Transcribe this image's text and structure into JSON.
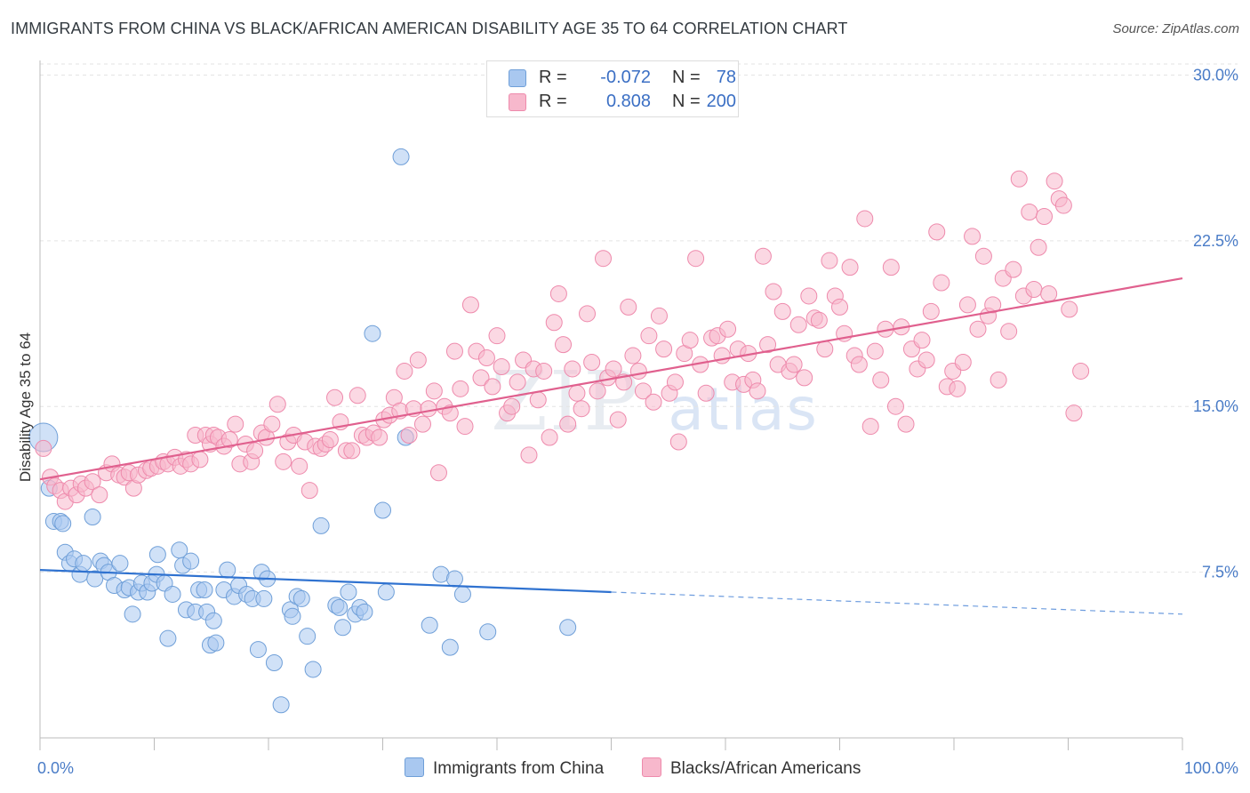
{
  "header": {
    "title": "IMMIGRANTS FROM CHINA VS BLACK/AFRICAN AMERICAN DISABILITY AGE 35 TO 64 CORRELATION CHART",
    "source": "Source: ZipAtlas.com"
  },
  "watermark": {
    "zip": "ZIP",
    "atlas": "atlas"
  },
  "legend_box": {
    "rows": [
      {
        "r_label": "R =",
        "r_value": "-0.072",
        "n_label": "N =",
        "n_value": "78",
        "color": "#a9c8f0"
      },
      {
        "r_label": "R =",
        "r_value": "0.808",
        "n_label": "N =",
        "n_value": "200",
        "color": "#f7b8cc"
      }
    ]
  },
  "bottom_legend": {
    "items": [
      {
        "label": "Immigrants from China",
        "color": "#a9c8f0"
      },
      {
        "label": "Blacks/African Americans",
        "color": "#f7b8cc"
      }
    ]
  },
  "chart_data": {
    "type": "scatter",
    "ylabel": "Disability Age 35 to 64",
    "xlim": [
      0,
      100
    ],
    "ylim": [
      0,
      30.5
    ],
    "y_ticks": [
      {
        "value": 7.5,
        "label": "7.5%"
      },
      {
        "value": 15.0,
        "label": "15.0%"
      },
      {
        "value": 22.5,
        "label": "22.5%"
      },
      {
        "value": 30.0,
        "label": "30.0%"
      }
    ],
    "x_tick_labels": [
      {
        "value": 0,
        "label": "0.0%"
      },
      {
        "value": 100,
        "label": "100.0%"
      }
    ],
    "grid": true,
    "series": [
      {
        "name": "Immigrants from China",
        "color": "#a9c8f0",
        "stroke": "#6f9fd8",
        "trend": {
          "x0": 0,
          "y0": 7.6,
          "x1": 50,
          "y1": 6.6,
          "x_dash_end": 100,
          "y_dash_end": 5.6,
          "color": "#2f72d0"
        },
        "points": [
          [
            0.3,
            13.6
          ],
          [
            0.8,
            11.3
          ],
          [
            1.2,
            9.8
          ],
          [
            1.8,
            9.8
          ],
          [
            2.0,
            9.7
          ],
          [
            2.2,
            8.4
          ],
          [
            2.6,
            7.9
          ],
          [
            3.0,
            8.1
          ],
          [
            3.5,
            7.4
          ],
          [
            3.8,
            7.9
          ],
          [
            4.6,
            10.0
          ],
          [
            4.8,
            7.2
          ],
          [
            5.3,
            8.0
          ],
          [
            5.6,
            7.8
          ],
          [
            6.0,
            7.5
          ],
          [
            6.5,
            6.9
          ],
          [
            7.0,
            7.9
          ],
          [
            7.4,
            6.7
          ],
          [
            7.8,
            6.8
          ],
          [
            8.1,
            5.6
          ],
          [
            8.6,
            6.6
          ],
          [
            8.9,
            7.0
          ],
          [
            9.4,
            6.6
          ],
          [
            9.8,
            7.0
          ],
          [
            10.2,
            7.4
          ],
          [
            10.3,
            8.3
          ],
          [
            10.9,
            7.0
          ],
          [
            11.2,
            4.5
          ],
          [
            11.6,
            6.5
          ],
          [
            12.2,
            8.5
          ],
          [
            12.5,
            7.8
          ],
          [
            12.8,
            5.8
          ],
          [
            13.2,
            8.0
          ],
          [
            13.6,
            5.7
          ],
          [
            13.9,
            6.7
          ],
          [
            14.4,
            6.7
          ],
          [
            14.6,
            5.7
          ],
          [
            14.9,
            4.2
          ],
          [
            15.2,
            5.3
          ],
          [
            15.4,
            4.3
          ],
          [
            16.1,
            6.7
          ],
          [
            16.4,
            7.6
          ],
          [
            17.0,
            6.4
          ],
          [
            17.4,
            6.9
          ],
          [
            18.1,
            6.5
          ],
          [
            18.6,
            6.3
          ],
          [
            19.1,
            4.0
          ],
          [
            19.4,
            7.5
          ],
          [
            19.6,
            6.3
          ],
          [
            19.9,
            7.2
          ],
          [
            20.5,
            3.4
          ],
          [
            21.1,
            1.5
          ],
          [
            21.9,
            5.8
          ],
          [
            22.1,
            5.5
          ],
          [
            22.5,
            6.4
          ],
          [
            22.9,
            6.3
          ],
          [
            23.4,
            4.6
          ],
          [
            23.9,
            3.1
          ],
          [
            24.6,
            9.6
          ],
          [
            25.9,
            6.0
          ],
          [
            26.2,
            5.9
          ],
          [
            26.5,
            5.0
          ],
          [
            27.0,
            6.6
          ],
          [
            27.6,
            5.6
          ],
          [
            28.0,
            5.9
          ],
          [
            28.4,
            5.7
          ],
          [
            29.1,
            18.3
          ],
          [
            30.0,
            10.3
          ],
          [
            30.3,
            6.6
          ],
          [
            31.6,
            26.3
          ],
          [
            32.0,
            13.6
          ],
          [
            34.1,
            5.1
          ],
          [
            35.1,
            7.4
          ],
          [
            35.9,
            4.1
          ],
          [
            36.3,
            7.2
          ],
          [
            39.2,
            4.8
          ],
          [
            46.2,
            5.0
          ],
          [
            37.0,
            6.5
          ]
        ]
      },
      {
        "name": "Blacks/African Americans",
        "color": "#f7b8cc",
        "stroke": "#ee8aac",
        "trend": {
          "x0": 0,
          "y0": 11.7,
          "x1": 100,
          "y1": 20.8,
          "color": "#e0608e"
        },
        "points": [
          [
            0.3,
            13.1
          ],
          [
            0.9,
            11.8
          ],
          [
            1.3,
            11.4
          ],
          [
            1.8,
            11.2
          ],
          [
            2.2,
            10.7
          ],
          [
            2.7,
            11.3
          ],
          [
            3.2,
            11.0
          ],
          [
            3.6,
            11.5
          ],
          [
            4.0,
            11.3
          ],
          [
            4.6,
            11.6
          ],
          [
            5.2,
            11.0
          ],
          [
            5.8,
            12.0
          ],
          [
            6.3,
            12.4
          ],
          [
            6.9,
            11.9
          ],
          [
            7.4,
            11.8
          ],
          [
            7.8,
            12.0
          ],
          [
            8.2,
            11.3
          ],
          [
            8.6,
            11.9
          ],
          [
            9.3,
            12.1
          ],
          [
            9.7,
            12.2
          ],
          [
            10.3,
            12.3
          ],
          [
            10.8,
            12.5
          ],
          [
            11.2,
            12.4
          ],
          [
            11.8,
            12.7
          ],
          [
            12.3,
            12.3
          ],
          [
            12.8,
            12.6
          ],
          [
            13.2,
            12.4
          ],
          [
            13.6,
            13.7
          ],
          [
            14.0,
            12.6
          ],
          [
            14.5,
            13.7
          ],
          [
            14.9,
            13.3
          ],
          [
            15.2,
            13.7
          ],
          [
            15.6,
            13.6
          ],
          [
            16.1,
            13.2
          ],
          [
            16.6,
            13.5
          ],
          [
            17.1,
            14.2
          ],
          [
            17.5,
            12.4
          ],
          [
            18.0,
            13.3
          ],
          [
            18.5,
            12.5
          ],
          [
            18.8,
            13.0
          ],
          [
            19.4,
            13.8
          ],
          [
            19.8,
            13.6
          ],
          [
            20.3,
            14.2
          ],
          [
            20.8,
            15.1
          ],
          [
            21.3,
            12.5
          ],
          [
            21.7,
            13.4
          ],
          [
            22.2,
            13.7
          ],
          [
            22.7,
            12.3
          ],
          [
            23.2,
            13.4
          ],
          [
            23.6,
            11.2
          ],
          [
            24.1,
            13.2
          ],
          [
            24.6,
            13.1
          ],
          [
            25.0,
            13.3
          ],
          [
            25.4,
            13.5
          ],
          [
            25.8,
            15.4
          ],
          [
            26.3,
            14.3
          ],
          [
            26.8,
            13.0
          ],
          [
            27.3,
            13.0
          ],
          [
            27.8,
            15.5
          ],
          [
            28.2,
            13.7
          ],
          [
            28.6,
            13.6
          ],
          [
            29.2,
            13.8
          ],
          [
            29.7,
            13.6
          ],
          [
            30.1,
            14.4
          ],
          [
            30.6,
            14.6
          ],
          [
            31.0,
            15.4
          ],
          [
            31.5,
            14.8
          ],
          [
            31.9,
            16.6
          ],
          [
            32.3,
            13.7
          ],
          [
            32.7,
            14.9
          ],
          [
            33.1,
            17.1
          ],
          [
            33.5,
            14.2
          ],
          [
            34.0,
            14.9
          ],
          [
            34.5,
            15.7
          ],
          [
            34.9,
            12.0
          ],
          [
            35.4,
            15.0
          ],
          [
            35.9,
            14.7
          ],
          [
            36.3,
            17.5
          ],
          [
            36.8,
            15.8
          ],
          [
            37.2,
            14.1
          ],
          [
            37.7,
            19.6
          ],
          [
            38.2,
            17.5
          ],
          [
            38.6,
            16.3
          ],
          [
            39.1,
            17.2
          ],
          [
            39.6,
            15.9
          ],
          [
            40.0,
            18.2
          ],
          [
            40.4,
            16.8
          ],
          [
            40.9,
            14.7
          ],
          [
            41.3,
            15.0
          ],
          [
            41.8,
            16.1
          ],
          [
            42.3,
            17.1
          ],
          [
            42.8,
            12.8
          ],
          [
            43.2,
            16.7
          ],
          [
            43.6,
            15.3
          ],
          [
            44.1,
            16.6
          ],
          [
            44.6,
            13.6
          ],
          [
            45.0,
            18.8
          ],
          [
            45.4,
            20.1
          ],
          [
            45.8,
            17.8
          ],
          [
            46.2,
            14.2
          ],
          [
            46.6,
            16.7
          ],
          [
            47.0,
            15.6
          ],
          [
            47.4,
            14.9
          ],
          [
            47.9,
            19.2
          ],
          [
            48.3,
            17.0
          ],
          [
            48.8,
            15.7
          ],
          [
            49.3,
            21.7
          ],
          [
            49.7,
            16.3
          ],
          [
            50.2,
            16.7
          ],
          [
            50.6,
            14.4
          ],
          [
            51.1,
            16.1
          ],
          [
            51.5,
            19.5
          ],
          [
            51.9,
            17.3
          ],
          [
            52.4,
            16.6
          ],
          [
            52.8,
            15.7
          ],
          [
            53.3,
            18.2
          ],
          [
            53.7,
            15.2
          ],
          [
            54.2,
            19.1
          ],
          [
            54.6,
            17.6
          ],
          [
            55.1,
            15.6
          ],
          [
            55.6,
            16.1
          ],
          [
            55.9,
            13.4
          ],
          [
            56.4,
            17.4
          ],
          [
            56.9,
            18.0
          ],
          [
            57.4,
            21.7
          ],
          [
            57.8,
            16.9
          ],
          [
            58.3,
            15.6
          ],
          [
            58.8,
            18.1
          ],
          [
            59.3,
            18.2
          ],
          [
            59.7,
            17.3
          ],
          [
            60.2,
            18.5
          ],
          [
            60.6,
            16.1
          ],
          [
            61.1,
            17.6
          ],
          [
            61.6,
            16.0
          ],
          [
            62.0,
            17.4
          ],
          [
            62.4,
            16.2
          ],
          [
            62.8,
            15.7
          ],
          [
            63.3,
            21.8
          ],
          [
            63.7,
            17.8
          ],
          [
            64.2,
            20.2
          ],
          [
            64.6,
            16.9
          ],
          [
            65.0,
            19.3
          ],
          [
            65.6,
            16.6
          ],
          [
            66.0,
            16.9
          ],
          [
            66.4,
            18.7
          ],
          [
            66.9,
            16.3
          ],
          [
            67.3,
            20.0
          ],
          [
            67.8,
            19.0
          ],
          [
            68.2,
            18.9
          ],
          [
            68.7,
            17.6
          ],
          [
            69.1,
            21.6
          ],
          [
            69.6,
            20.0
          ],
          [
            70.0,
            19.5
          ],
          [
            70.4,
            18.3
          ],
          [
            70.9,
            21.3
          ],
          [
            71.3,
            17.3
          ],
          [
            71.7,
            16.9
          ],
          [
            72.2,
            23.5
          ],
          [
            72.7,
            14.1
          ],
          [
            73.1,
            17.5
          ],
          [
            73.6,
            16.2
          ],
          [
            74.0,
            18.5
          ],
          [
            74.5,
            21.3
          ],
          [
            74.9,
            15.0
          ],
          [
            75.4,
            18.6
          ],
          [
            75.8,
            14.2
          ],
          [
            76.3,
            17.6
          ],
          [
            76.8,
            16.7
          ],
          [
            77.2,
            18.0
          ],
          [
            77.6,
            17.1
          ],
          [
            78.0,
            19.3
          ],
          [
            78.5,
            22.9
          ],
          [
            78.9,
            20.6
          ],
          [
            79.4,
            15.9
          ],
          [
            79.9,
            16.6
          ],
          [
            80.3,
            15.8
          ],
          [
            80.8,
            17.0
          ],
          [
            81.2,
            19.6
          ],
          [
            81.6,
            22.7
          ],
          [
            82.1,
            18.5
          ],
          [
            82.6,
            21.8
          ],
          [
            83.0,
            19.1
          ],
          [
            83.4,
            19.6
          ],
          [
            83.9,
            16.2
          ],
          [
            84.3,
            20.8
          ],
          [
            84.8,
            18.4
          ],
          [
            85.2,
            21.2
          ],
          [
            85.7,
            25.3
          ],
          [
            86.1,
            20.0
          ],
          [
            86.6,
            23.8
          ],
          [
            87.0,
            20.3
          ],
          [
            87.4,
            22.2
          ],
          [
            87.9,
            23.6
          ],
          [
            88.3,
            20.1
          ],
          [
            88.8,
            25.2
          ],
          [
            89.2,
            24.4
          ],
          [
            89.6,
            24.1
          ],
          [
            90.1,
            19.4
          ],
          [
            90.5,
            14.7
          ],
          [
            91.1,
            16.6
          ]
        ]
      }
    ]
  }
}
